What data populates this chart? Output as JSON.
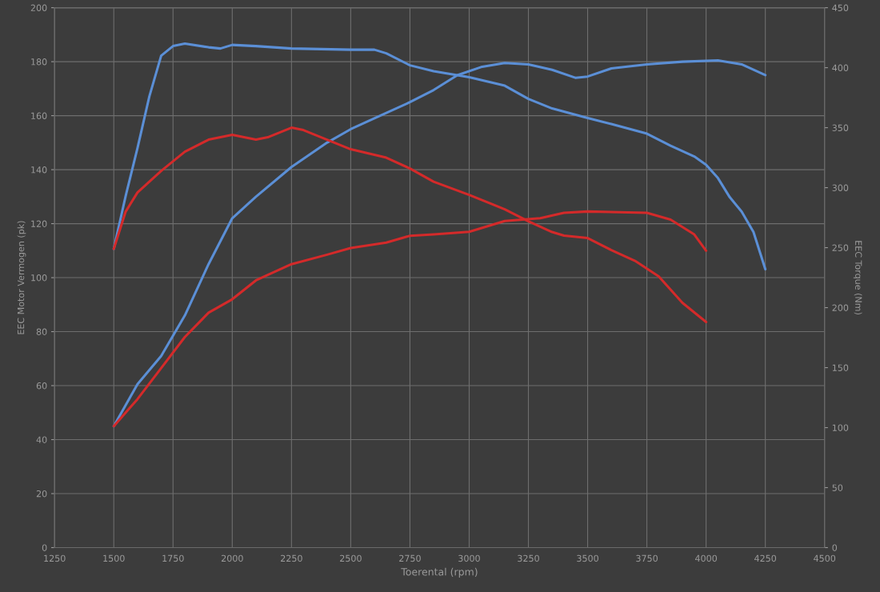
{
  "chart_data": {
    "type": "line",
    "xlabel": "Toerental (rpm)",
    "ylabel": "EEC Motor Vermogen (pk)",
    "y2label": "EEC Torque (Nm)",
    "xlim": [
      1250,
      4500
    ],
    "xticks": [
      1250,
      1500,
      1750,
      2000,
      2250,
      2500,
      2750,
      3000,
      3250,
      3500,
      3750,
      4000,
      4250,
      4500
    ],
    "ylim": [
      0,
      200
    ],
    "yticks": [
      0,
      20,
      40,
      60,
      80,
      100,
      120,
      140,
      160,
      180,
      200
    ],
    "y2lim": [
      0,
      450
    ],
    "y2ticks": [
      0,
      50,
      100,
      150,
      200,
      250,
      300,
      350,
      400,
      450
    ],
    "grid": true,
    "line_style": "solid",
    "series": [
      {
        "color": "#5b8fd6",
        "axis": "y2",
        "x": [
          1500,
          1550,
          1600,
          1650,
          1700,
          1750,
          1800,
          1900,
          1950,
          2000,
          2100,
          2250,
          2500,
          2600,
          2650,
          2750,
          2850,
          3000,
          3150,
          3250,
          3350,
          3500,
          3600,
          3750,
          3850,
          3950,
          4000,
          4050,
          4100,
          4150,
          4200,
          4250
        ],
        "values": [
          249,
          293,
          333,
          376,
          410,
          418,
          420,
          417,
          416,
          419,
          418,
          416,
          415,
          415,
          412,
          402,
          397,
          392,
          385,
          374,
          366,
          358,
          353,
          345,
          335,
          326,
          319,
          308,
          292,
          280,
          263,
          232
        ]
      },
      {
        "color": "#5b8fd6",
        "axis": "y",
        "x": [
          1500,
          1600,
          1700,
          1800,
          1900,
          2000,
          2100,
          2250,
          2400,
          2500,
          2600,
          2750,
          2850,
          2950,
          3050,
          3150,
          3250,
          3350,
          3450,
          3500,
          3600,
          3750,
          3900,
          4050,
          4150,
          4250
        ],
        "values": [
          45,
          60.5,
          71,
          86,
          105,
          122,
          130,
          141,
          150,
          155,
          159,
          165,
          169.5,
          175,
          178,
          179.5,
          179,
          177,
          174,
          174.5,
          177.5,
          179,
          180,
          180.5,
          179,
          175
        ]
      },
      {
        "color": "#d42a2a",
        "axis": "y2",
        "x": [
          1500,
          1550,
          1600,
          1700,
          1800,
          1900,
          2000,
          2100,
          2150,
          2250,
          2300,
          2400,
          2500,
          2650,
          2750,
          2850,
          3000,
          3150,
          3250,
          3350,
          3400,
          3500,
          3600,
          3700,
          3800,
          3900,
          4000
        ],
        "values": [
          249,
          280,
          296,
          314,
          330,
          340,
          344,
          340,
          342,
          350,
          348,
          340,
          332,
          325,
          316,
          305,
          294,
          282,
          272,
          263,
          260,
          258,
          248,
          239,
          226,
          204,
          188
        ]
      },
      {
        "color": "#d42a2a",
        "axis": "y",
        "x": [
          1500,
          1600,
          1700,
          1800,
          1900,
          2000,
          2100,
          2250,
          2400,
          2500,
          2650,
          2750,
          2850,
          3000,
          3150,
          3300,
          3400,
          3500,
          3750,
          3850,
          3950,
          4000
        ],
        "values": [
          45,
          55,
          66.5,
          78,
          87,
          92,
          99,
          105,
          108.5,
          111,
          113,
          115.5,
          116,
          117,
          121,
          122,
          124,
          124.5,
          124,
          121.5,
          116,
          110
        ]
      }
    ]
  }
}
